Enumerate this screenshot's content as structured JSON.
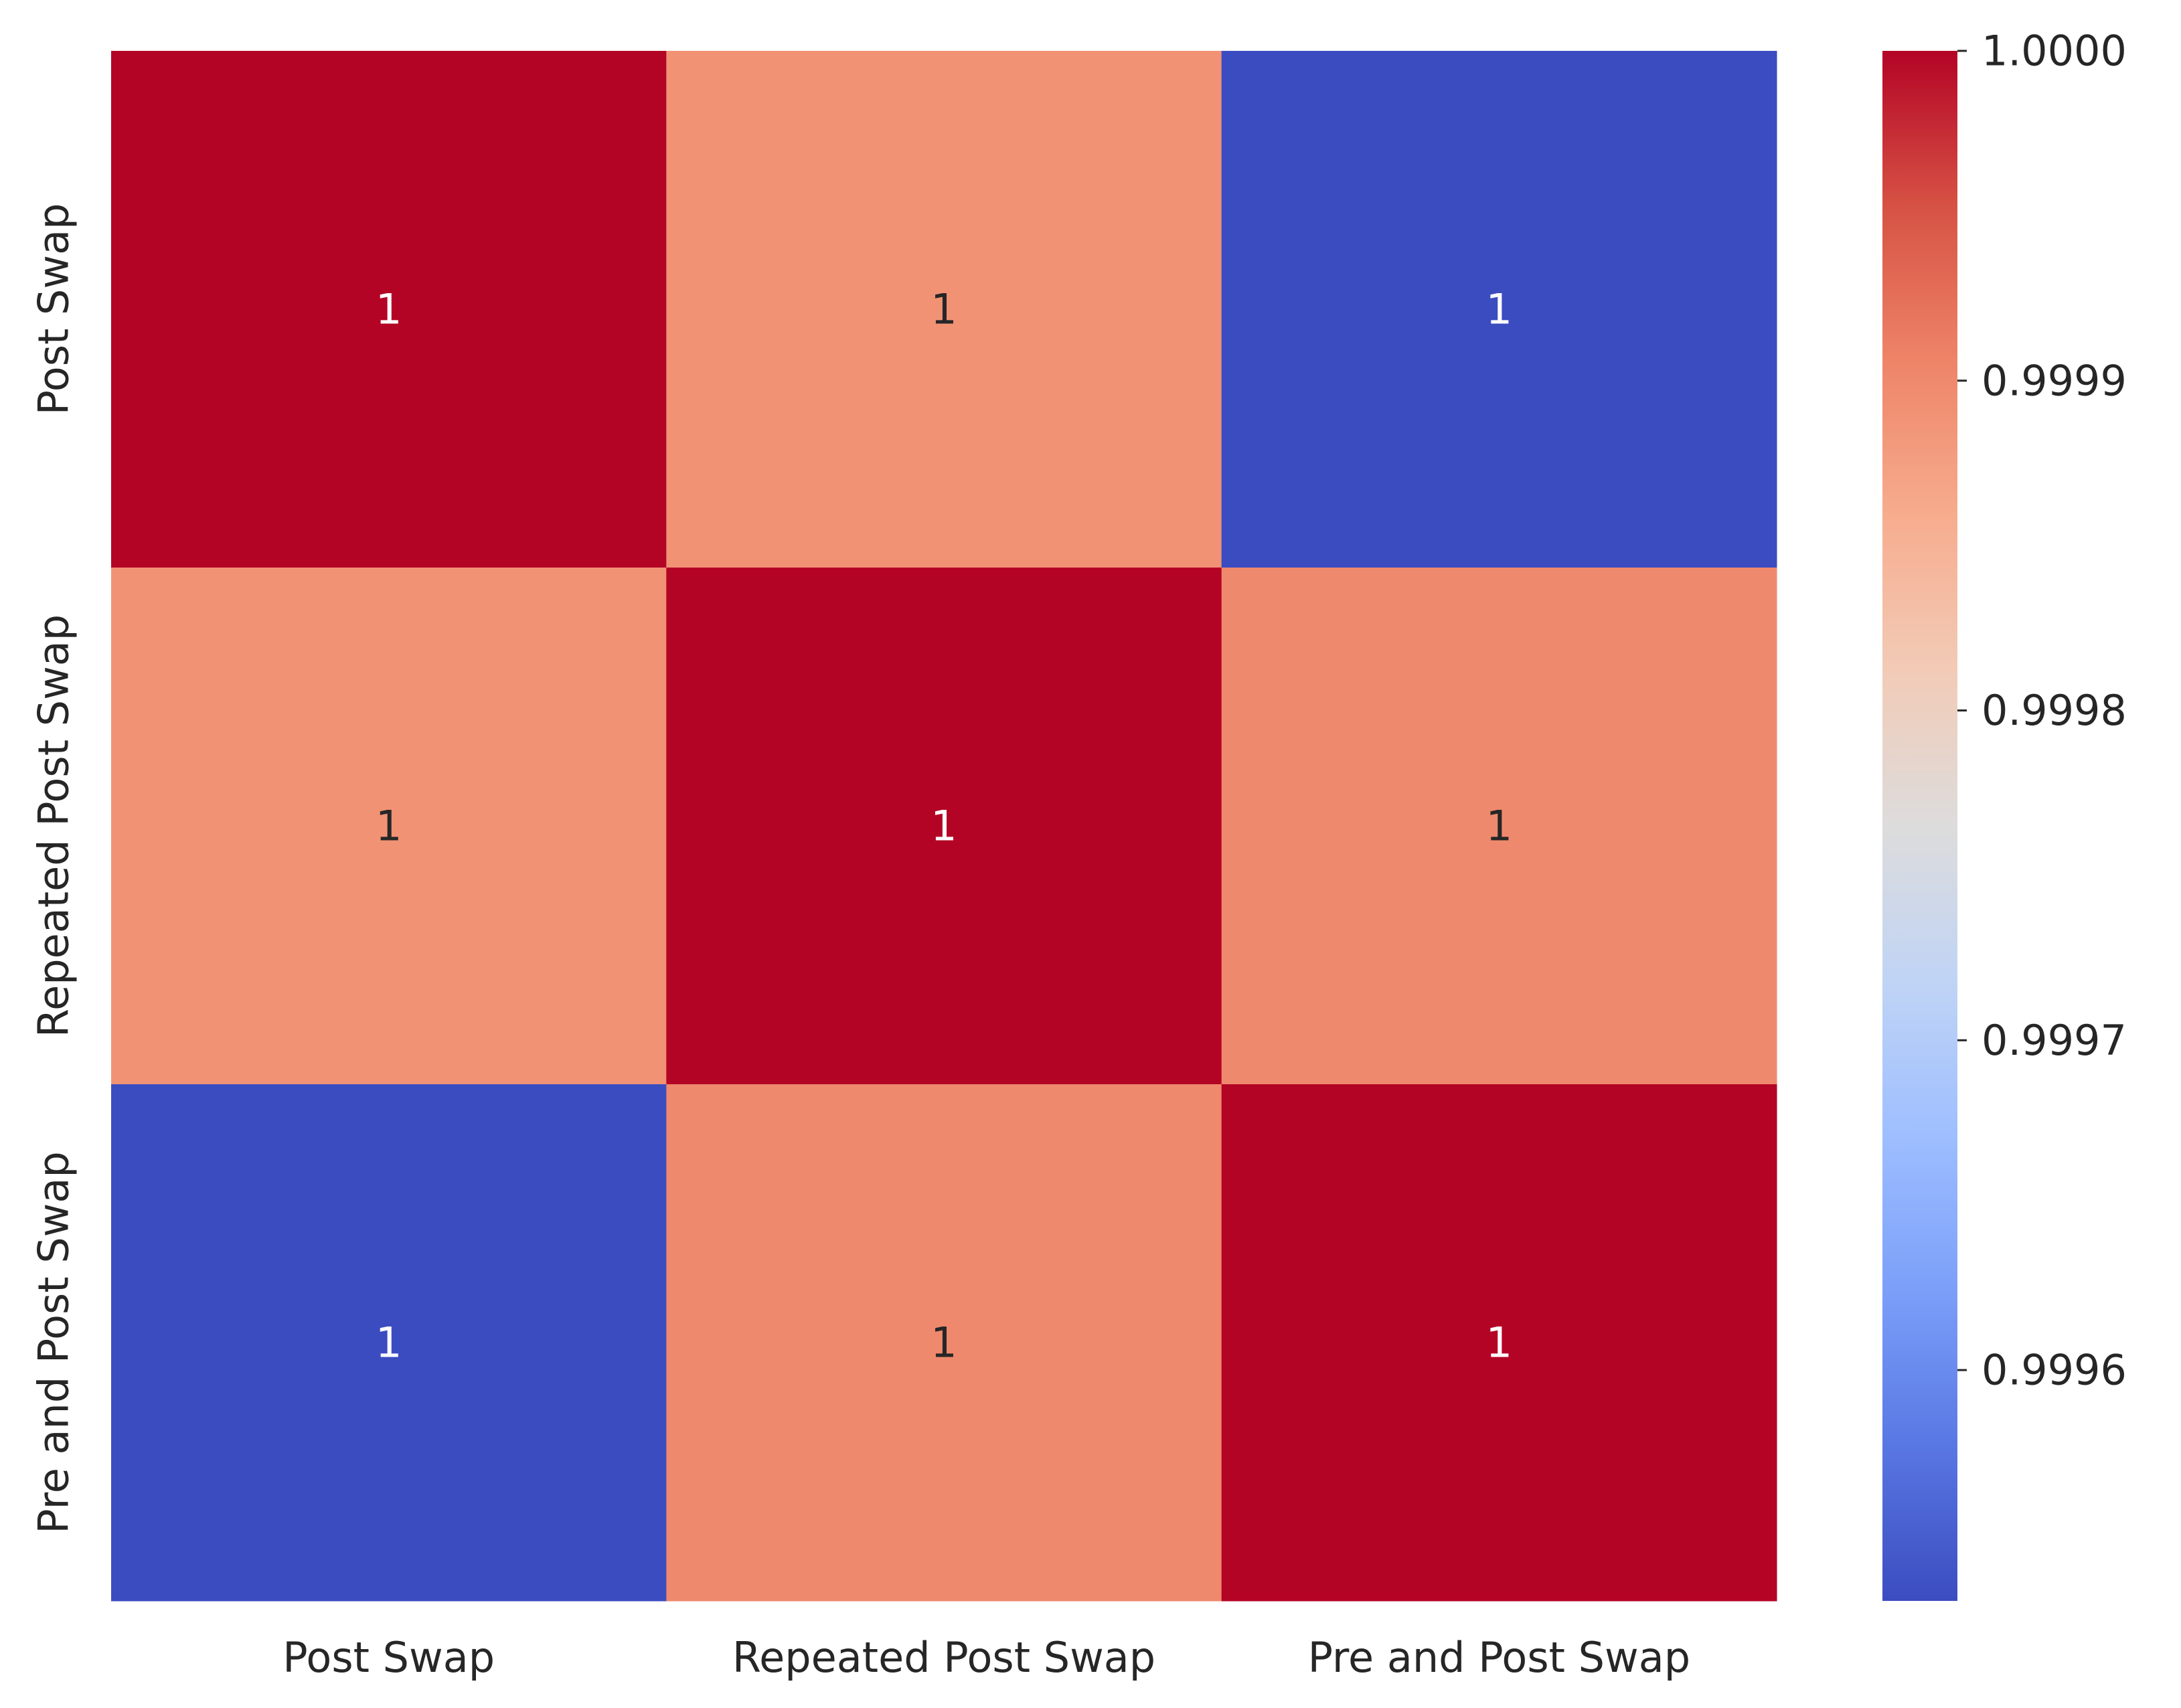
{
  "chart_data": {
    "type": "heatmap",
    "title": "",
    "xlabel": "",
    "ylabel": "",
    "x_categories": [
      "Post Swap",
      "Repeated Post Swap",
      "Pre and Post Swap"
    ],
    "y_categories": [
      "Post Swap",
      "Repeated Post Swap",
      "Pre and Post Swap"
    ],
    "values": [
      [
        1.0,
        0.99989,
        0.99953
      ],
      [
        0.99989,
        1.0,
        0.9999
      ],
      [
        0.99953,
        0.9999,
        1.0
      ]
    ],
    "annotations": [
      [
        "1",
        "1",
        "1"
      ],
      [
        "1",
        "1",
        "1"
      ],
      [
        "1",
        "1",
        "1"
      ]
    ],
    "colormap": "coolwarm",
    "colormap_stops": [
      "#3b4cc0",
      "#5977e3",
      "#7b9ff9",
      "#9ebeff",
      "#c0d4f5",
      "#dddcdc",
      "#f2cbb7",
      "#f7ac8e",
      "#ee8468",
      "#d65244",
      "#b40426"
    ],
    "vmin": 0.99953,
    "vmax": 1.0,
    "colorbar": {
      "ticks": [
        0.9996,
        0.9997,
        0.9998,
        0.9999,
        1.0
      ],
      "tick_labels": [
        "0.9996",
        "0.9997",
        "0.9998",
        "0.9999",
        "1.0000"
      ]
    },
    "grid": false,
    "legend": "colorbar-right"
  }
}
